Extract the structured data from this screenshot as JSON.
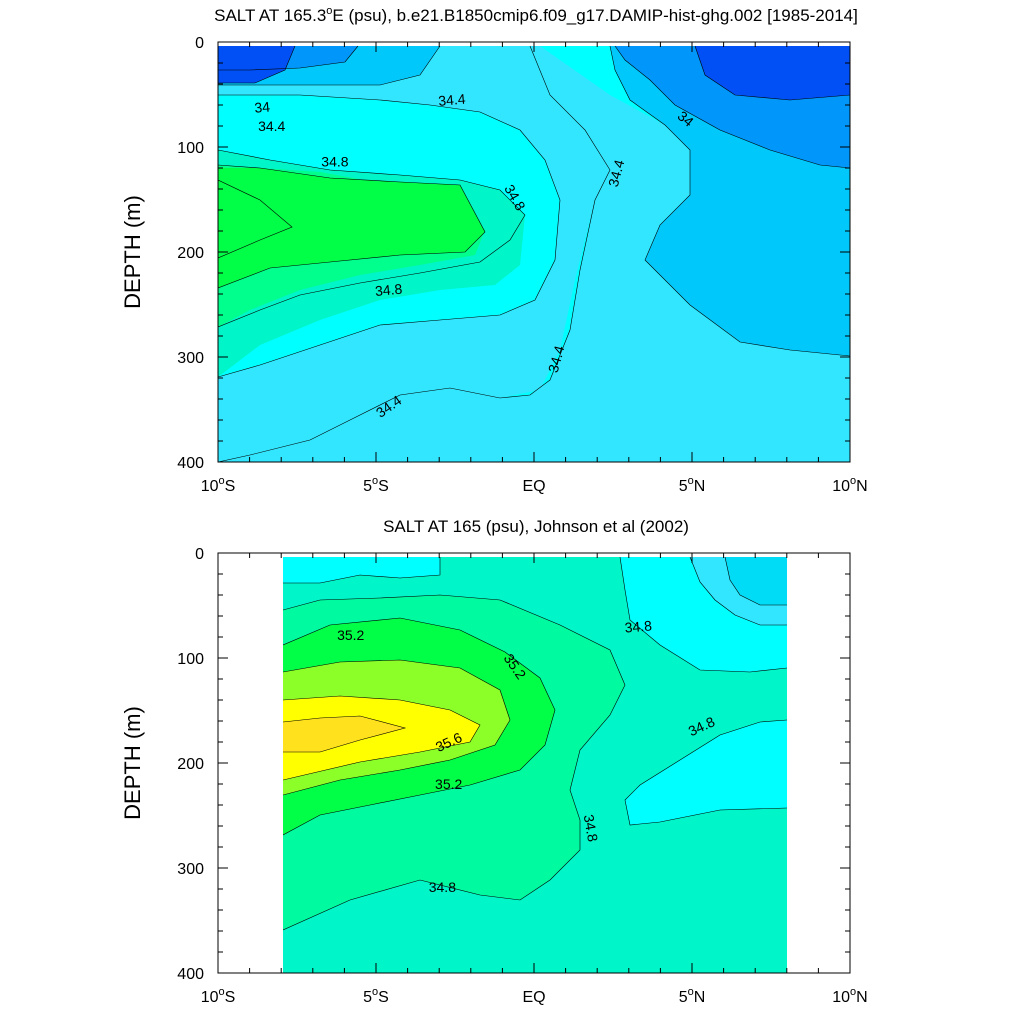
{
  "chart_data": [
    {
      "type": "contour",
      "title_main": "SALT AT 165.3",
      "title_degree": "o",
      "title_rest": "E (psu), b.e21.B1850cmip6.f09_g17.DAMIP-hist-ghg.002 [1985-2014]",
      "ylabel": "DEPTH (m)",
      "xlim": [
        -10,
        10
      ],
      "ylim": [
        0,
        400
      ],
      "y_inverted": true,
      "xticks": [
        {
          "value": -10,
          "num": "10",
          "deg": "o",
          "hemi": "S"
        },
        {
          "value": -5,
          "num": "5",
          "deg": "o",
          "hemi": "S"
        },
        {
          "value": 0,
          "num": "EQ",
          "deg": "",
          "hemi": ""
        },
        {
          "value": 5,
          "num": "5",
          "deg": "o",
          "hemi": "N"
        },
        {
          "value": 10,
          "num": "10",
          "deg": "o",
          "hemi": "N"
        }
      ],
      "yticks": [
        0,
        100,
        200,
        300,
        400
      ],
      "colors": {
        "b1": "#0050f5",
        "b2": "#0096fa",
        "b3": "#00c8fa",
        "b4": "#32e6ff",
        "b5": "#00ffff",
        "b6": "#00f5c8",
        "b7": "#00ff8c",
        "b8": "#00ff46"
      },
      "contour_labels": [
        {
          "text": "34",
          "x": -8.6,
          "y": 62,
          "angle": -5
        },
        {
          "text": "34.4",
          "x": -8.3,
          "y": 80,
          "angle": 0
        },
        {
          "text": "34.4",
          "x": -2.6,
          "y": 55,
          "angle": -5
        },
        {
          "text": "34.8",
          "x": -6.3,
          "y": 114,
          "angle": 0
        },
        {
          "text": "34.8",
          "x": -0.6,
          "y": 148,
          "angle": 60
        },
        {
          "text": "34.8",
          "x": -4.6,
          "y": 236,
          "angle": -5
        },
        {
          "text": "34.4",
          "x": -4.6,
          "y": 347,
          "angle": -35
        },
        {
          "text": "34.4",
          "x": 0.7,
          "y": 302,
          "angle": -75
        },
        {
          "text": "34.4",
          "x": 2.6,
          "y": 125,
          "angle": -75
        },
        {
          "text": "34",
          "x": 4.8,
          "y": 73,
          "angle": 40
        }
      ]
    },
    {
      "type": "contour",
      "title": "SALT AT 165 (psu), Johnson et al (2002)",
      "ylabel": "DEPTH (m)",
      "xlim": [
        -10,
        10
      ],
      "ylim": [
        0,
        400
      ],
      "y_inverted": true,
      "data_extent_x": [
        -8,
        8
      ],
      "xticks": [
        {
          "value": -10,
          "num": "10",
          "deg": "o",
          "hemi": "S"
        },
        {
          "value": -5,
          "num": "5",
          "deg": "o",
          "hemi": "S"
        },
        {
          "value": 0,
          "num": "EQ",
          "deg": "",
          "hemi": ""
        },
        {
          "value": 5,
          "num": "5",
          "deg": "o",
          "hemi": "N"
        },
        {
          "value": 10,
          "num": "10",
          "deg": "o",
          "hemi": "N"
        }
      ],
      "yticks": [
        0,
        100,
        200,
        300,
        400
      ],
      "colors": {
        "b3": "#00dcf5",
        "b4": "#32e6ff",
        "b5": "#00ffff",
        "b6": "#00f5c8",
        "b7": "#00faa0",
        "b8": "#00ff46",
        "b9": "#8cff28",
        "b10": "#ffff00",
        "b11": "#ffe11e"
      },
      "contour_labels": [
        {
          "text": "35.2",
          "x": -5.8,
          "y": 78,
          "angle": 0
        },
        {
          "text": "35.2",
          "x": -0.6,
          "y": 108,
          "angle": 55
        },
        {
          "text": "35.6",
          "x": -2.7,
          "y": 180,
          "angle": -25
        },
        {
          "text": "35.2",
          "x": -2.7,
          "y": 220,
          "angle": 0
        },
        {
          "text": "34.8",
          "x": 3.3,
          "y": 70,
          "angle": -5
        },
        {
          "text": "34.8",
          "x": 5.3,
          "y": 165,
          "angle": -25
        },
        {
          "text": "34.8",
          "x": 1.8,
          "y": 262,
          "angle": 80
        },
        {
          "text": "34.8",
          "x": -2.9,
          "y": 318,
          "angle": 0
        }
      ]
    }
  ]
}
